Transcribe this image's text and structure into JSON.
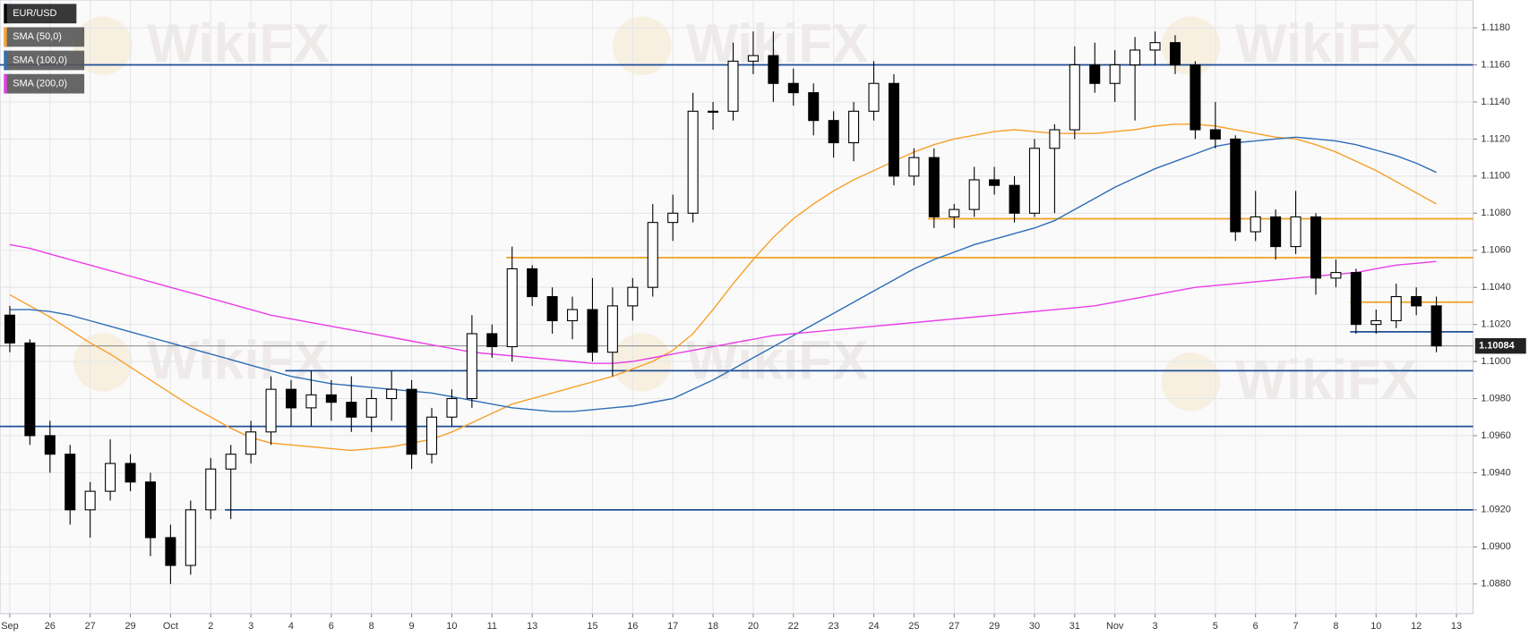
{
  "chart_data": {
    "type": "candlestick",
    "watermark": "WikiFX",
    "categories": [
      "Sep",
      null,
      "26",
      null,
      "27",
      null,
      "29",
      null,
      "Oct",
      null,
      "2",
      null,
      "3",
      null,
      "4",
      null,
      "6",
      null,
      "8",
      null,
      "9",
      null,
      "10",
      null,
      "11",
      null,
      "13",
      null,
      null,
      "15",
      null,
      "16",
      null,
      "17",
      null,
      "18",
      null,
      "20",
      null,
      "22",
      null,
      "23",
      null,
      "24",
      null,
      "25",
      null,
      "27",
      null,
      "29",
      null,
      "30",
      null,
      "31",
      null,
      "Nov",
      null,
      "3",
      null,
      null,
      "5",
      null,
      "6",
      null,
      "7",
      null,
      "8",
      null,
      "10",
      null,
      "12",
      null,
      "13"
    ],
    "ylim": [
      1.0864,
      1.1195
    ],
    "yticks": [
      {
        "value": 1.088,
        "label": "1.0880"
      },
      {
        "value": 1.09,
        "label": "1.0900"
      },
      {
        "value": 1.092,
        "label": "1.0920"
      },
      {
        "value": 1.094,
        "label": "1.0940"
      },
      {
        "value": 1.096,
        "label": "1.0960"
      },
      {
        "value": 1.098,
        "label": "1.0980"
      },
      {
        "value": 1.1,
        "label": "1.1000"
      },
      {
        "value": 1.102,
        "label": "1.1020"
      },
      {
        "value": 1.104,
        "label": "1.1040"
      },
      {
        "value": 1.106,
        "label": "1.1060"
      },
      {
        "value": 1.108,
        "label": "1.1080"
      },
      {
        "value": 1.11,
        "label": "1.1100"
      },
      {
        "value": 1.112,
        "label": "1.1120"
      },
      {
        "value": 1.114,
        "label": "1.1140"
      },
      {
        "value": 1.116,
        "label": "1.1160"
      },
      {
        "value": 1.118,
        "label": "1.1180"
      }
    ],
    "grid": true,
    "last_price": 1.10084,
    "candles": {
      "name": "EUR/USD",
      "up_color": "#ffffff",
      "down_color": "#000000",
      "open": [
        1.1025,
        1.101,
        1.096,
        1.095,
        1.092,
        1.093,
        1.0945,
        1.0935,
        1.0905,
        1.089,
        1.092,
        1.0942,
        1.095,
        1.0962,
        1.0985,
        1.0975,
        1.0982,
        1.0978,
        1.097,
        1.098,
        1.0985,
        1.095,
        1.097,
        1.098,
        1.1015,
        1.1008,
        1.105,
        1.1035,
        1.1022,
        1.1028,
        1.1005,
        1.103,
        1.104,
        1.1075,
        1.108,
        1.1135,
        1.1135,
        1.1162,
        1.1165,
        1.115,
        1.1145,
        1.113,
        1.1118,
        1.1135,
        1.115,
        1.11,
        1.111,
        1.1078,
        1.1082,
        1.1098,
        1.1095,
        1.108,
        1.1115,
        1.1125,
        1.116,
        1.115,
        1.116,
        1.1168,
        1.1172,
        1.116,
        1.1125,
        1.112,
        1.107,
        1.1078,
        1.1062,
        1.1078,
        1.1045,
        1.1048,
        1.102,
        1.1022,
        1.1035,
        1.103,
        null
      ],
      "high": [
        1.103,
        1.1012,
        1.0968,
        1.0955,
        1.0935,
        1.0958,
        1.095,
        1.094,
        1.0912,
        1.0925,
        1.0948,
        1.0955,
        1.0968,
        1.0992,
        1.099,
        1.0995,
        1.099,
        1.0992,
        1.0985,
        1.0995,
        1.099,
        1.0975,
        1.0985,
        1.1025,
        1.102,
        1.1062,
        1.1052,
        1.104,
        1.1035,
        1.1045,
        1.104,
        1.1045,
        1.1085,
        1.109,
        1.1145,
        1.114,
        1.1172,
        1.1178,
        1.1178,
        1.1158,
        1.115,
        1.1135,
        1.114,
        1.1162,
        1.1155,
        1.1115,
        1.1115,
        1.1085,
        1.1105,
        1.1105,
        1.11,
        1.112,
        1.1128,
        1.117,
        1.1172,
        1.1168,
        1.1175,
        1.1178,
        1.1176,
        1.1162,
        1.114,
        1.1122,
        1.1092,
        1.1082,
        1.1092,
        1.108,
        1.1055,
        1.105,
        1.1028,
        1.1042,
        1.104,
        1.1035,
        null
      ],
      "low": [
        1.1005,
        1.0955,
        1.094,
        1.0912,
        1.0905,
        1.0925,
        1.093,
        1.0895,
        1.088,
        1.0885,
        1.0915,
        1.0915,
        1.0945,
        1.0955,
        1.0965,
        1.0965,
        1.0968,
        1.0962,
        1.0962,
        1.0968,
        1.0942,
        1.0945,
        1.0965,
        1.0975,
        1.1002,
        1.1,
        1.103,
        1.1015,
        1.1012,
        1.1,
        1.0992,
        1.1022,
        1.1035,
        1.1065,
        1.1075,
        1.1125,
        1.113,
        1.1155,
        1.114,
        1.1138,
        1.1122,
        1.111,
        1.1108,
        1.113,
        1.1095,
        1.1095,
        1.1072,
        1.1072,
        1.1078,
        1.109,
        1.1075,
        1.1078,
        1.108,
        1.112,
        1.1145,
        1.114,
        1.113,
        1.116,
        1.1155,
        1.112,
        1.1115,
        1.1065,
        1.1065,
        1.1055,
        1.1058,
        1.1036,
        1.104,
        1.1015,
        1.1015,
        1.1018,
        1.1025,
        1.1005,
        null
      ],
      "close": [
        1.101,
        1.096,
        1.095,
        1.092,
        1.093,
        1.0945,
        1.0935,
        1.0905,
        1.089,
        1.092,
        1.0942,
        1.095,
        1.0962,
        1.0985,
        1.0975,
        1.0982,
        1.0978,
        1.097,
        1.098,
        1.0985,
        1.095,
        1.097,
        1.098,
        1.1015,
        1.1008,
        1.105,
        1.1035,
        1.1022,
        1.1028,
        1.1005,
        1.103,
        1.104,
        1.1075,
        1.108,
        1.1135,
        1.1135,
        1.1162,
        1.1165,
        1.115,
        1.1145,
        1.113,
        1.1118,
        1.1135,
        1.115,
        1.11,
        1.111,
        1.1078,
        1.1082,
        1.1098,
        1.1095,
        1.108,
        1.1115,
        1.1125,
        1.116,
        1.115,
        1.116,
        1.1168,
        1.1172,
        1.116,
        1.1125,
        1.112,
        1.107,
        1.1078,
        1.1062,
        1.1078,
        1.1045,
        1.1048,
        1.102,
        1.1022,
        1.1035,
        1.103,
        1.10084,
        null
      ]
    },
    "series": [
      {
        "name": "SMA (50,0)",
        "color": "#f7a12c",
        "values": [
          1.1036,
          1.103,
          1.1024,
          1.1017,
          1.101,
          1.1004,
          1.0997,
          1.099,
          1.0983,
          1.0976,
          1.097,
          1.0964,
          1.0959,
          1.0956,
          1.0955,
          1.0954,
          1.0953,
          1.0952,
          1.0953,
          1.0954,
          1.0956,
          1.0958,
          1.0962,
          1.0967,
          1.0972,
          1.0977,
          1.098,
          1.0983,
          1.0986,
          1.0989,
          1.0992,
          1.0996,
          1.1,
          1.1006,
          1.1015,
          1.1028,
          1.1042,
          1.1055,
          1.1067,
          1.1077,
          1.1085,
          1.1092,
          1.1098,
          1.1103,
          1.1108,
          1.1113,
          1.1117,
          1.112,
          1.1122,
          1.1124,
          1.1125,
          1.1124,
          1.1123,
          1.1123,
          1.1123,
          1.1124,
          1.1125,
          1.1127,
          1.1128,
          1.1128,
          1.1127,
          1.1125,
          1.1123,
          1.1121,
          1.112,
          1.1117,
          1.1113,
          1.1108,
          1.1103,
          1.1097,
          1.1091,
          1.1085,
          null
        ]
      },
      {
        "name": "SMA (100,0)",
        "color": "#2f6eb5",
        "values": [
          1.1028,
          1.1028,
          1.1027,
          1.1025,
          1.1022,
          1.1019,
          1.1016,
          1.1013,
          1.101,
          1.1007,
          1.1004,
          1.1001,
          1.0998,
          1.0995,
          1.0992,
          1.099,
          1.0988,
          1.0987,
          1.0986,
          1.0985,
          1.0984,
          1.0983,
          1.0981,
          1.0979,
          1.0977,
          1.0975,
          1.0974,
          1.0973,
          1.0973,
          1.0974,
          1.0975,
          1.0976,
          1.0978,
          1.098,
          1.0985,
          1.099,
          1.0996,
          1.1002,
          1.1008,
          1.1014,
          1.102,
          1.1026,
          1.1032,
          1.1038,
          1.1044,
          1.105,
          1.1055,
          1.1059,
          1.1063,
          1.1066,
          1.1069,
          1.1072,
          1.1076,
          1.1082,
          1.1088,
          1.1094,
          1.1099,
          1.1104,
          1.1108,
          1.1112,
          1.1116,
          1.1118,
          1.1119,
          1.112,
          1.1121,
          1.112,
          1.1119,
          1.1117,
          1.1114,
          1.1111,
          1.1107,
          1.1102,
          null
        ]
      },
      {
        "name": "SMA (200,0)",
        "color": "#e83ee8",
        "values": [
          1.1063,
          1.1061,
          1.1058,
          1.1055,
          1.1052,
          1.1049,
          1.1046,
          1.1043,
          1.104,
          1.1037,
          1.1034,
          1.1031,
          1.1028,
          1.1025,
          1.1023,
          1.1021,
          1.1019,
          1.1017,
          1.1015,
          1.1013,
          1.1011,
          1.1009,
          1.1007,
          1.1005,
          1.1004,
          1.1003,
          1.1002,
          1.1001,
          1.1,
          1.0999,
          1.0999,
          1.1,
          1.1002,
          1.1004,
          1.1006,
          1.1008,
          1.101,
          1.1012,
          1.1014,
          1.1015,
          1.1016,
          1.1017,
          1.1018,
          1.1019,
          1.102,
          1.1021,
          1.1022,
          1.1023,
          1.1024,
          1.1025,
          1.1026,
          1.1027,
          1.1028,
          1.1029,
          1.103,
          1.1032,
          1.1034,
          1.1036,
          1.1038,
          1.104,
          1.1041,
          1.1042,
          1.1043,
          1.1044,
          1.1045,
          1.1046,
          1.1047,
          1.1048,
          1.105,
          1.1052,
          1.1053,
          1.1054,
          null
        ]
      }
    ],
    "levels": [
      {
        "value": 1.116,
        "color": "#1f4e96",
        "from": 0
      },
      {
        "value": 1.1077,
        "color": "#f0a020",
        "from": 46
      },
      {
        "value": 1.1056,
        "color": "#f0a020",
        "from": 25
      },
      {
        "value": 1.1032,
        "color": "#f0a020",
        "from": 67
      },
      {
        "value": 1.1016,
        "color": "#1f4e96",
        "from": 67
      },
      {
        "value": 1.0995,
        "color": "#1f4e96",
        "from": 14
      },
      {
        "value": 1.0965,
        "color": "#1f4e96",
        "from": 0
      },
      {
        "value": 1.092,
        "color": "#1f4e96",
        "from": 11
      }
    ]
  }
}
